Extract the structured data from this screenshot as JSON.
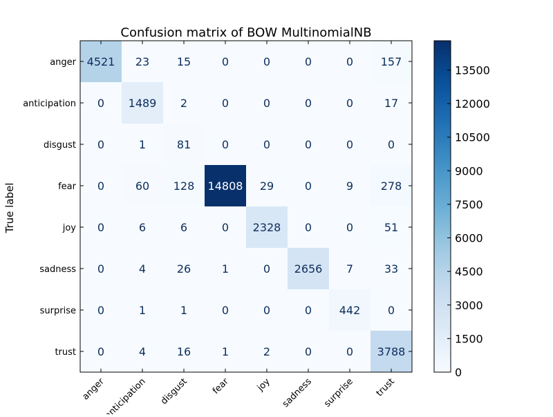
{
  "chart_data": {
    "type": "heatmap",
    "title": "Confusion matrix of BOW MultinomialNB",
    "xlabel": "",
    "ylabel": "True label",
    "row_labels": [
      "anger",
      "anticipation",
      "disgust",
      "fear",
      "joy",
      "sadness",
      "surprise",
      "trust"
    ],
    "col_labels": [
      "anger",
      "anticipation",
      "disgust",
      "fear",
      "joy",
      "sadness",
      "surprise",
      "trust"
    ],
    "values": [
      [
        4521,
        23,
        15,
        0,
        0,
        0,
        0,
        157
      ],
      [
        0,
        1489,
        2,
        0,
        0,
        0,
        0,
        17
      ],
      [
        0,
        1,
        81,
        0,
        0,
        0,
        0,
        0
      ],
      [
        0,
        60,
        128,
        14808,
        29,
        0,
        9,
        278
      ],
      [
        0,
        6,
        6,
        0,
        2328,
        0,
        0,
        51
      ],
      [
        0,
        4,
        26,
        1,
        0,
        2656,
        7,
        33
      ],
      [
        0,
        1,
        1,
        0,
        0,
        0,
        442,
        0
      ],
      [
        0,
        4,
        16,
        1,
        2,
        0,
        0,
        3788
      ]
    ],
    "colorbar": {
      "min": 0,
      "max": 14808,
      "ticks": [
        0,
        1500,
        3000,
        4500,
        6000,
        7500,
        9000,
        10500,
        12000,
        13500
      ],
      "colormap": "Blues",
      "color_low": "#f7fbff",
      "color_high": "#08306b"
    },
    "grid": false,
    "legend": "colorbar-right"
  }
}
